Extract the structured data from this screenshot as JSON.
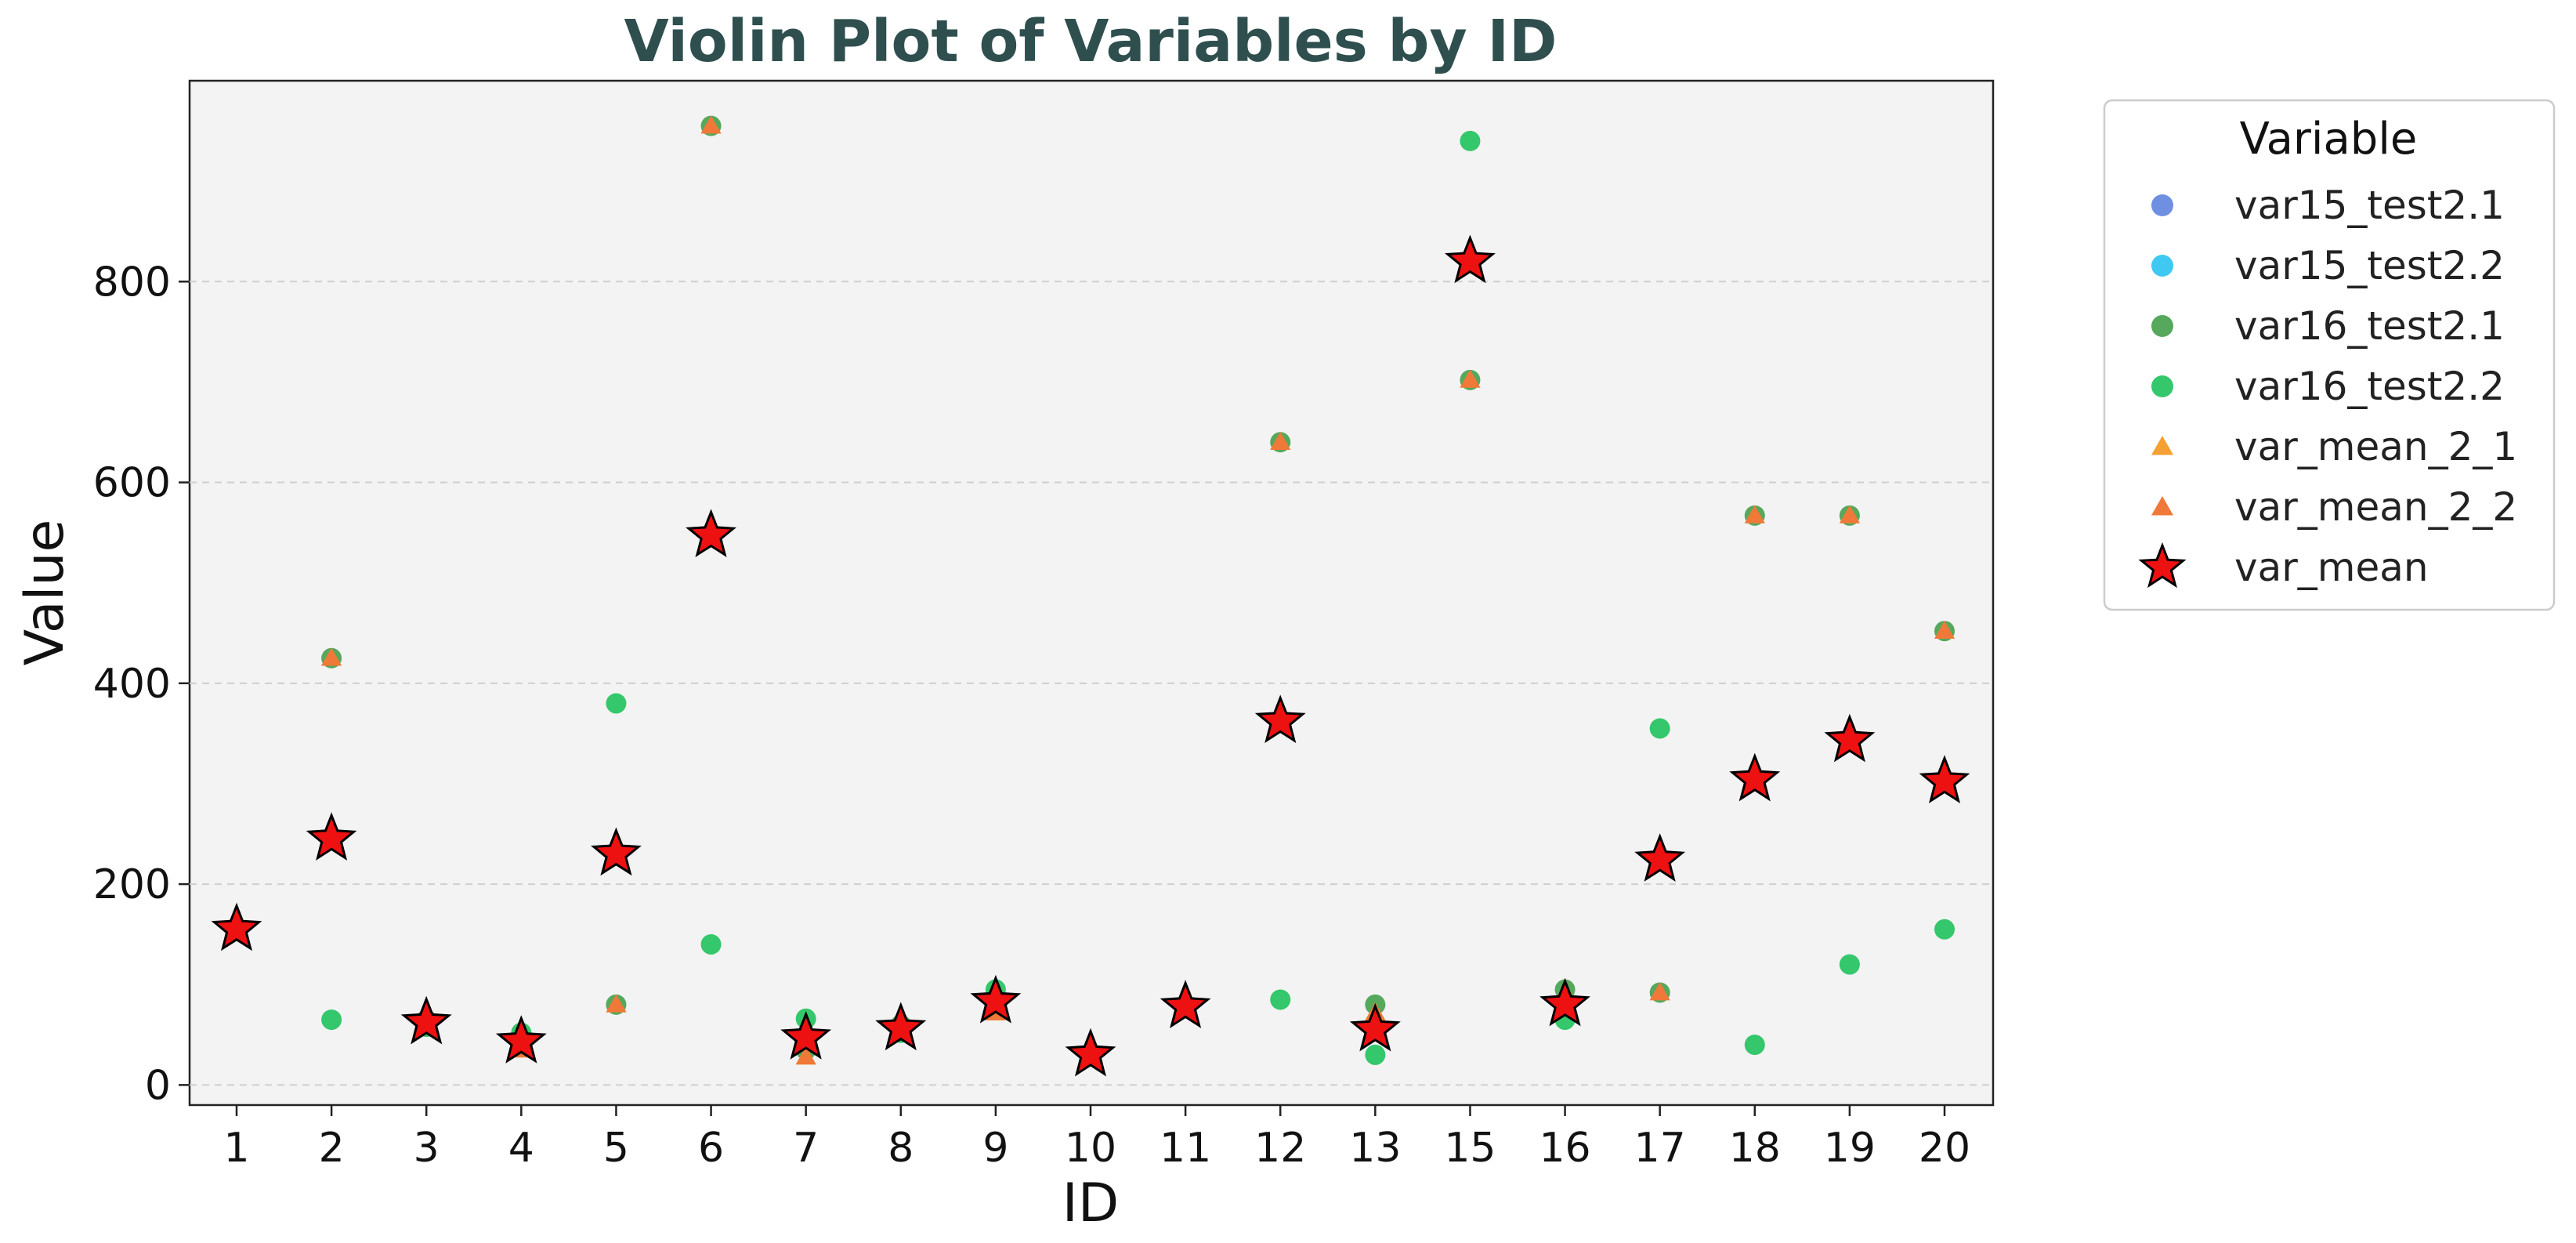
{
  "chart_data": {
    "type": "scatter",
    "title": "Violin Plot of Variables by ID",
    "xlabel": "ID",
    "ylabel": "Value",
    "categories": [
      "1",
      "2",
      "3",
      "4",
      "5",
      "6",
      "7",
      "8",
      "9",
      "10",
      "11",
      "12",
      "13",
      "15",
      "16",
      "17",
      "18",
      "19",
      "20"
    ],
    "ylim": [
      -20,
      1000
    ],
    "yticks": [
      0,
      200,
      400,
      600,
      800
    ],
    "grid": "horizontal dashed",
    "background": "#f3f3f3",
    "title_color": "#2f4f4f",
    "legend": {
      "title": "Variable",
      "position": "outside-right"
    },
    "series": [
      {
        "name": "var15_test2.1",
        "marker": "circle",
        "color": "#6f8fe3",
        "values": [
          null,
          null,
          null,
          null,
          null,
          null,
          null,
          null,
          null,
          null,
          null,
          null,
          null,
          null,
          null,
          null,
          null,
          null,
          null
        ]
      },
      {
        "name": "var15_test2.2",
        "marker": "circle",
        "color": "#3fc8f2",
        "values": [
          null,
          null,
          null,
          null,
          null,
          null,
          null,
          null,
          null,
          null,
          null,
          null,
          null,
          null,
          null,
          null,
          null,
          null,
          null
        ]
      },
      {
        "name": "var16_test2.1",
        "marker": "circle",
        "color": "#56a85c",
        "values": [
          155,
          425,
          65,
          50,
          80,
          955,
          35,
          60,
          85,
          30,
          80,
          640,
          80,
          702,
          95,
          92,
          567,
          567,
          452
        ]
      },
      {
        "name": "var16_test2.2",
        "marker": "circle",
        "color": "#34c76b",
        "values": [
          155,
          65,
          58,
          52,
          380,
          140,
          66,
          52,
          95,
          32,
          77,
          85,
          30,
          940,
          65,
          355,
          40,
          120,
          155
        ]
      },
      {
        "name": "var_mean_2_1",
        "marker": "triangle",
        "color": "#f5a033",
        "values": [
          155,
          425,
          65,
          35,
          80,
          955,
          28,
          58,
          72,
          28,
          80,
          640,
          72,
          702,
          92,
          92,
          567,
          567,
          452
        ]
      },
      {
        "name": "var_mean_2_2",
        "marker": "triangle",
        "color": "#f07838",
        "values": [
          155,
          425,
          65,
          35,
          80,
          955,
          28,
          58,
          72,
          28,
          80,
          640,
          72,
          702,
          92,
          92,
          567,
          567,
          452
        ]
      },
      {
        "name": "var_mean",
        "marker": "star",
        "color": "#ee1111",
        "values": [
          155,
          245,
          62,
          43,
          230,
          547,
          47,
          56,
          83,
          30,
          78,
          362,
          55,
          820,
          80,
          224,
          304,
          343,
          302
        ]
      }
    ]
  }
}
